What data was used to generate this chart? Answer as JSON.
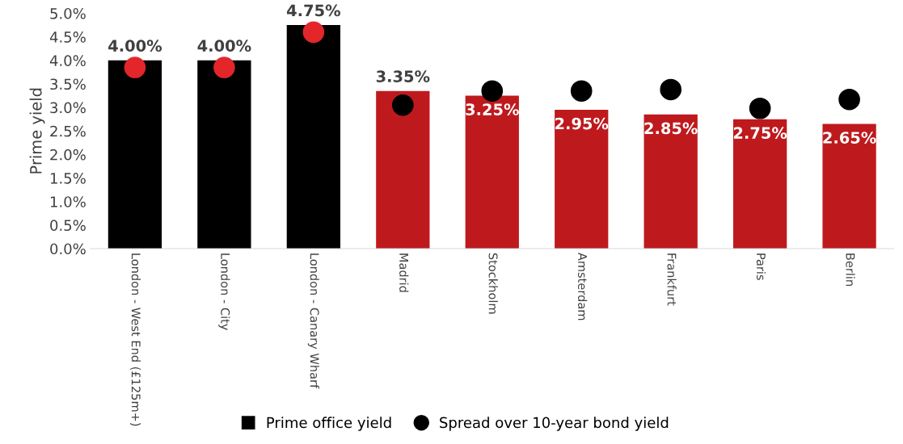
{
  "chart_data": {
    "type": "bar",
    "ylabel": "Prime yield",
    "categories": [
      "London - West End (£125m+)",
      "London - City",
      "London - Canary Wharf",
      "Madrid",
      "Stockholm",
      "Amsterdam",
      "Frankfurt",
      "Paris",
      "Berlin"
    ],
    "series": [
      {
        "name": "Prime office yield",
        "color": "#000000",
        "colors": [
          "#000000",
          "#000000",
          "#000000",
          "#be1a1d",
          "#be1a1d",
          "#be1a1d",
          "#be1a1d",
          "#be1a1d",
          "#be1a1d"
        ],
        "values": [
          4.0,
          4.0,
          4.75,
          3.35,
          3.25,
          2.95,
          2.85,
          2.75,
          2.65
        ],
        "value_labels": [
          "4.00%",
          "4.00%",
          "4.75%",
          "3.35%",
          "3.25%",
          "2.95%",
          "2.85%",
          "2.75%",
          "2.65%"
        ]
      },
      {
        "name": "Spread over 10-year bond yield",
        "type": "scatter",
        "marker": "circle",
        "color": "#000000",
        "colors": [
          "#e3262a",
          "#e3262a",
          "#e3262a",
          "#000000",
          "#000000",
          "#000000",
          "#000000",
          "#000000",
          "#000000"
        ],
        "values": [
          3.85,
          3.85,
          4.6,
          3.05,
          3.35,
          3.35,
          3.38,
          2.98,
          3.17
        ]
      }
    ],
    "ylim": [
      0,
      5.0
    ],
    "yticks": [
      {
        "value": 0,
        "label": "0.0%"
      },
      {
        "value": 0.5,
        "label": "0.5%"
      },
      {
        "value": 1.0,
        "label": "1.0%"
      },
      {
        "value": 1.5,
        "label": "1.5%"
      },
      {
        "value": 2.0,
        "label": "2.0%"
      },
      {
        "value": 2.5,
        "label": "2.5%"
      },
      {
        "value": 3.0,
        "label": "3.0%"
      },
      {
        "value": 3.5,
        "label": "3.5%"
      },
      {
        "value": 4.0,
        "label": "4.0%"
      },
      {
        "value": 4.5,
        "label": "4.5%"
      },
      {
        "value": 5.0,
        "label": "5.0%"
      }
    ],
    "grid": false,
    "legend": "bottom"
  }
}
